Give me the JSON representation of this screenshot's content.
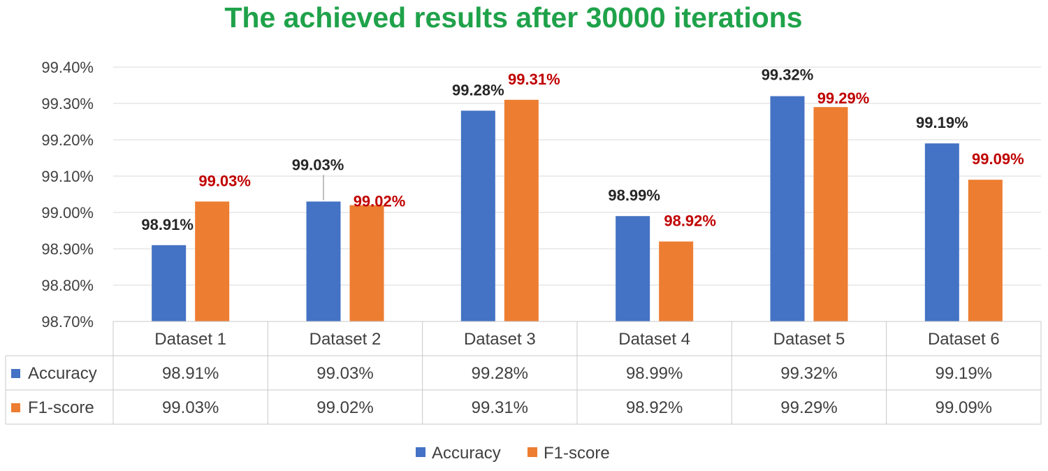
{
  "chart_data": {
    "type": "bar",
    "title": "The achieved results after 30000 iterations",
    "categories": [
      "Dataset 1",
      "Dataset 2",
      "Dataset 3",
      "Dataset 4",
      "Dataset 5",
      "Dataset 6"
    ],
    "series": [
      {
        "name": "Accuracy",
        "color": "#4472c4",
        "label_color": "#262626",
        "values": [
          98.91,
          99.03,
          99.28,
          98.99,
          99.32,
          99.19
        ],
        "labels": [
          "98.91%",
          "99.03%",
          "99.28%",
          "98.99%",
          "99.32%",
          "99.19%"
        ]
      },
      {
        "name": "F1-score",
        "color": "#ed7d31",
        "label_color": "#c00000",
        "values": [
          99.03,
          99.02,
          99.31,
          98.92,
          99.29,
          99.09
        ],
        "labels": [
          "99.03%",
          "99.02%",
          "99.31%",
          "98.92%",
          "99.29%",
          "99.09%"
        ]
      }
    ],
    "ylim": [
      98.7,
      99.4
    ],
    "yticks": [
      98.7,
      98.8,
      98.9,
      99.0,
      99.1,
      99.2,
      99.3,
      99.4
    ],
    "ytick_labels": [
      "98.70%",
      "98.80%",
      "98.90%",
      "99.00%",
      "99.10%",
      "99.20%",
      "99.30%",
      "99.40%"
    ],
    "grid": true,
    "data_table": true,
    "legend_position": "bottom-center"
  }
}
